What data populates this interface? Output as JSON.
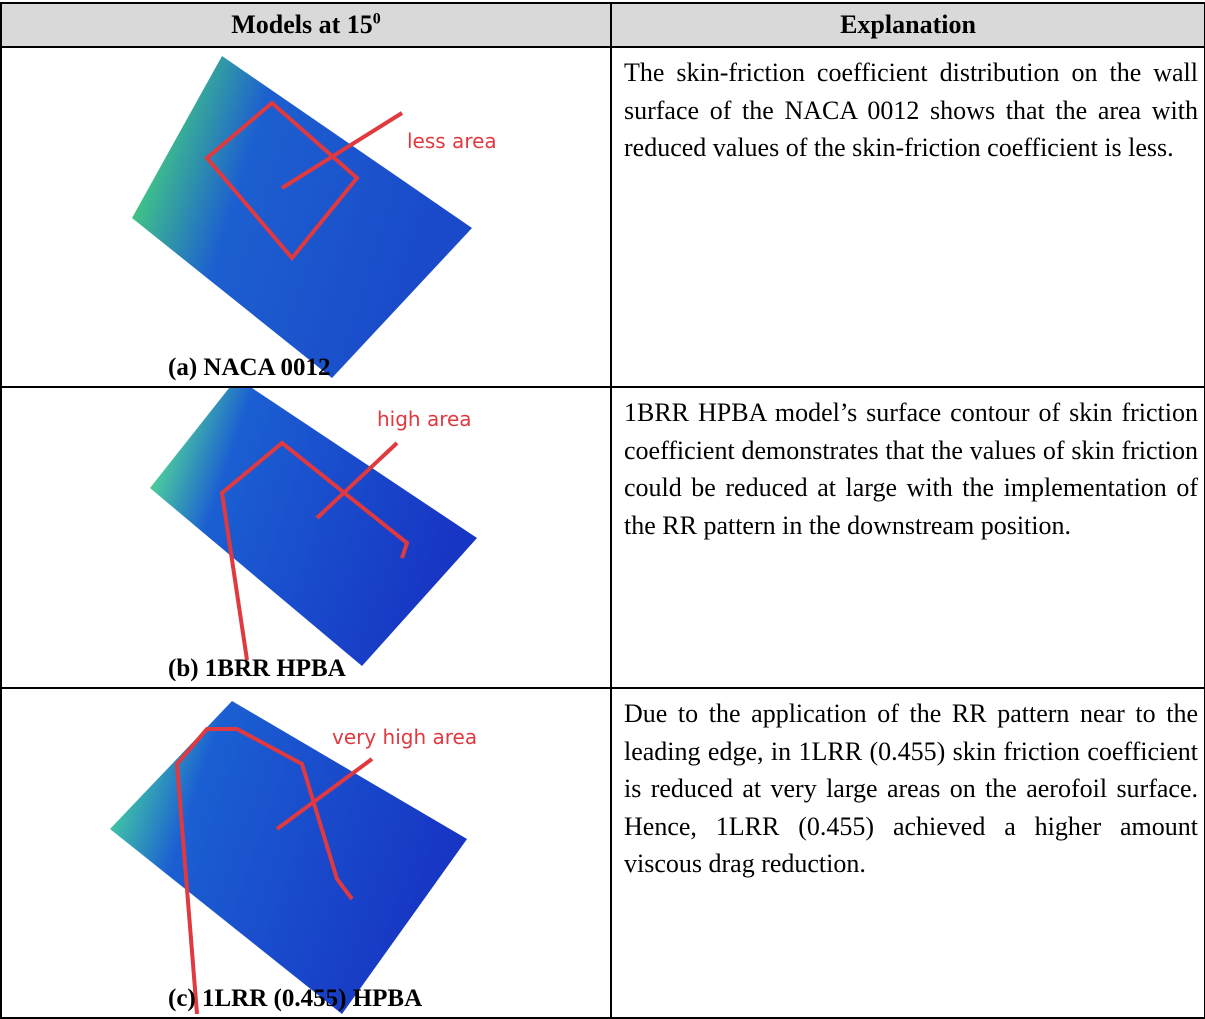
{
  "header": {
    "models": {
      "text": "Models at 15",
      "sup": "0"
    },
    "explanation": "Explanation"
  },
  "rows": [
    {
      "caption": "(a) NACA 0012",
      "annotation": "less area",
      "explanation": "The skin-friction coefficient distribution on the wall surface of the NACA 0012 shows that the area with reduced values of the skin-friction coefficient is less."
    },
    {
      "caption": "(b) 1BRR HPBA",
      "annotation": "high area",
      "explanation": "1BRR HPBA model’s surface contour of skin friction coefficient demonstrates that the values of skin friction could be reduced at large with the implementation of the RR pattern in the downstream position."
    },
    {
      "caption": "(c) 1LRR (0.455) HPBA",
      "annotation": "very high area",
      "explanation": "Due to the application of the RR pattern near to the leading edge, in 1LRR (0.455) skin friction coefficient is reduced at very large areas on the aerofoil surface. Hence, 1LRR (0.455) achieved a higher amount viscous drag reduction."
    }
  ]
}
